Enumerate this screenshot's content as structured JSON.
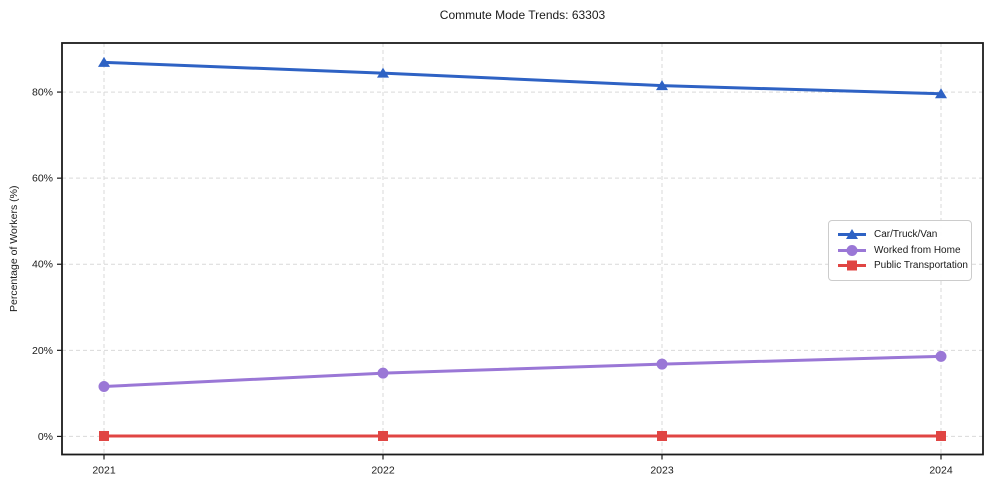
{
  "chart_data": {
    "type": "line",
    "title": "Commute Mode Trends: 63303",
    "xlabel": "",
    "ylabel": "Percentage of Workers (%)",
    "x": [
      2021,
      2022,
      2023,
      2024
    ],
    "x_tick_labels": [
      "2021",
      "2022",
      "2023",
      "2024"
    ],
    "y_ticks": [
      0,
      20,
      40,
      60,
      80
    ],
    "y_tick_labels": [
      "0%",
      "20%",
      "40%",
      "60%",
      "80%"
    ],
    "ylim": [
      -4.2,
      91.4
    ],
    "grid": "dashed-both-axes",
    "grid_color": "#d9d9d9",
    "legend_position": "center-right",
    "series": [
      {
        "name": "Car/Truck/Van",
        "marker": "triangle",
        "color": "#2e62c4",
        "values": [
          86.9,
          84.4,
          81.5,
          79.6
        ]
      },
      {
        "name": "Worked from Home",
        "marker": "circle",
        "color": "#9a77d6",
        "values": [
          11.6,
          14.7,
          16.8,
          18.6
        ]
      },
      {
        "name": "Public Transportation",
        "marker": "square",
        "color": "#e04543",
        "values": [
          0.1,
          0.1,
          0.1,
          0.1
        ]
      }
    ]
  }
}
